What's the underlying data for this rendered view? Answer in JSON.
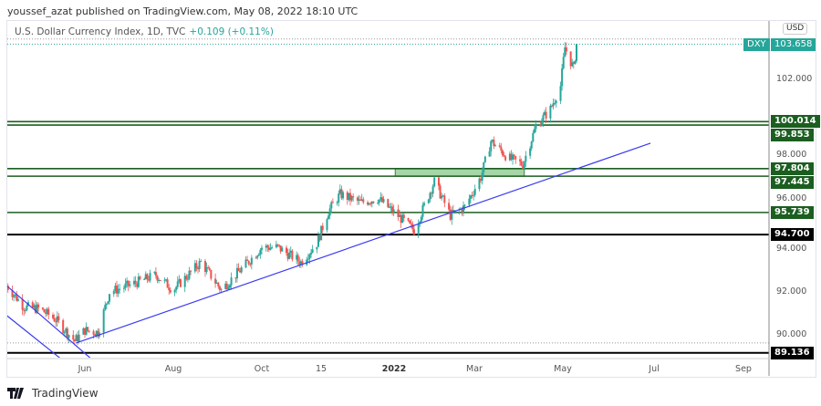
{
  "header": {
    "published": "youssef_azat published on TradingView.com, May 08, 2022 18:10 UTC"
  },
  "legend": {
    "symbol_title": "U.S. Dollar Currency Index, 1D, TVC",
    "change": "+0.109 (+0.11%)"
  },
  "price_axis": {
    "currency": "USD",
    "symbol_tag": "DXY",
    "last_price": "103.658"
  },
  "brand": {
    "name": "TradingView"
  },
  "colors": {
    "up": "#26a69a",
    "down": "#ef5350",
    "level": "#1b5e20",
    "trend": "#3b3bf0",
    "zone": "#a5d6a7"
  },
  "chart_data": {
    "type": "candlestick",
    "symbol": "DXY",
    "interval": "1D",
    "y_ticks": [
      "90.000",
      "92.000",
      "94.000",
      "96.000",
      "98.000",
      "102.000"
    ],
    "x_ticks": [
      "Jun",
      "Aug",
      "Oct",
      "15",
      "2022",
      "Mar",
      "May",
      "Jul",
      "Sep"
    ],
    "ylim": [
      88.8,
      104.2
    ],
    "close_path": [
      [
        "2021-04-08",
        92.3
      ],
      [
        "2021-04-20",
        91.3
      ],
      [
        "2021-05-01",
        91.2
      ],
      [
        "2021-05-12",
        90.7
      ],
      [
        "2021-05-25",
        89.7
      ],
      [
        "2021-06-01",
        90.2
      ],
      [
        "2021-06-10",
        90.1
      ],
      [
        "2021-06-18",
        92.0
      ],
      [
        "2021-07-05",
        92.4
      ],
      [
        "2021-07-20",
        92.8
      ],
      [
        "2021-08-01",
        92.1
      ],
      [
        "2021-08-20",
        93.4
      ],
      [
        "2021-09-03",
        92.1
      ],
      [
        "2021-09-20",
        93.3
      ],
      [
        "2021-10-01",
        94.1
      ],
      [
        "2021-10-12",
        94.1
      ],
      [
        "2021-10-28",
        93.4
      ],
      [
        "2021-11-08",
        94.3
      ],
      [
        "2021-11-16",
        95.8
      ],
      [
        "2021-11-24",
        96.6
      ],
      [
        "2021-12-08",
        96.2
      ],
      [
        "2021-12-20",
        96.4
      ],
      [
        "2022-01-01",
        95.7
      ],
      [
        "2022-01-14",
        94.9
      ],
      [
        "2022-01-28",
        97.2
      ],
      [
        "2022-02-08",
        95.6
      ],
      [
        "2022-02-18",
        96.0
      ],
      [
        "2022-03-01",
        97.4
      ],
      [
        "2022-03-08",
        99.1
      ],
      [
        "2022-03-20",
        98.3
      ],
      [
        "2022-03-30",
        98.0
      ],
      [
        "2022-04-08",
        99.8
      ],
      [
        "2022-04-18",
        100.6
      ],
      [
        "2022-04-25",
        101.7
      ],
      [
        "2022-04-28",
        103.5
      ],
      [
        "2022-05-04",
        102.5
      ],
      [
        "2022-05-06",
        103.658
      ]
    ],
    "levels": [
      {
        "label": "100.014",
        "value": 100.014,
        "color": "#1b5e20"
      },
      {
        "label": "99.853",
        "value": 99.853,
        "color": "#1b5e20"
      },
      {
        "label": "97.804",
        "value": 97.804,
        "color": "#1b5e20"
      },
      {
        "label": "97.445",
        "value": 97.445,
        "color": "#1b5e20"
      },
      {
        "label": "95.739",
        "value": 95.739,
        "color": "#1b5e20"
      },
      {
        "label": "94.700",
        "value": 94.7,
        "color": "#000000"
      },
      {
        "label": "89.136",
        "value": 89.136,
        "color": "#000000"
      }
    ],
    "zone": {
      "from": "2022-01-01",
      "to": "2022-03-31",
      "low": 97.445,
      "high": 97.804
    },
    "trendlines": [
      {
        "p1": [
          "2021-05-26",
          89.6
        ],
        "p2": [
          "2022-06-26",
          99.0
        ]
      },
      {
        "p1": [
          "2021-04-08",
          92.3
        ],
        "p2": [
          "2021-06-08",
          88.7
        ]
      },
      {
        "p1": [
          "2021-04-08",
          90.9
        ],
        "p2": [
          "2021-05-22",
          88.5
        ]
      }
    ]
  }
}
